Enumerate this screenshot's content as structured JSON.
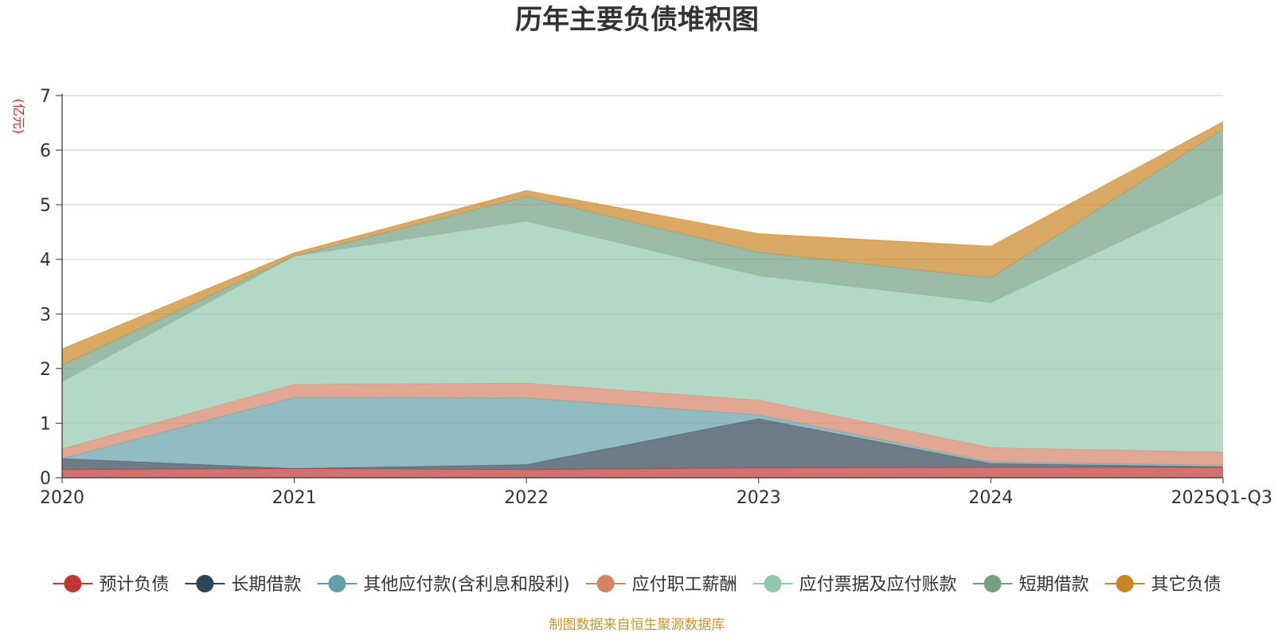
{
  "chart_data": {
    "type": "area",
    "stacked": true,
    "title": "历年主要负债堆积图",
    "unit_label": "(亿元)",
    "categories": [
      "2020",
      "2021",
      "2022",
      "2023",
      "2024",
      "2025Q1-Q3"
    ],
    "ylim": [
      0,
      7
    ],
    "yticks": [
      "0",
      "1",
      "2",
      "3",
      "4",
      "5",
      "6",
      "7"
    ],
    "grid": true,
    "legend_position": "bottom",
    "series": [
      {
        "name": "预计负债",
        "color": "#c23531",
        "values": [
          0.15,
          0.17,
          0.15,
          0.18,
          0.19,
          0.19
        ]
      },
      {
        "name": "长期借款",
        "color": "#2f4554",
        "values": [
          0.2,
          0.0,
          0.09,
          0.9,
          0.07,
          0.01
        ]
      },
      {
        "name": "其他应付款(含利息和股利)",
        "color": "#61a0a8",
        "values": [
          0.0,
          1.3,
          1.22,
          0.07,
          0.03,
          0.03
        ]
      },
      {
        "name": "应付职工薪酬",
        "color": "#d48265",
        "values": [
          0.18,
          0.24,
          0.27,
          0.27,
          0.26,
          0.24
        ]
      },
      {
        "name": "应付票据及应付账款",
        "color": "#91c7ae",
        "values": [
          1.23,
          2.35,
          2.97,
          2.28,
          2.66,
          4.74
        ]
      },
      {
        "name": "短期借款",
        "color": "#749f83",
        "values": [
          0.3,
          0.0,
          0.45,
          0.43,
          0.45,
          1.17
        ]
      },
      {
        "name": "其它负债",
        "color": "#ca8622",
        "values": [
          0.3,
          0.06,
          0.11,
          0.34,
          0.58,
          0.14
        ]
      }
    ],
    "source_note": "制图数据来自恒生聚源数据库"
  }
}
